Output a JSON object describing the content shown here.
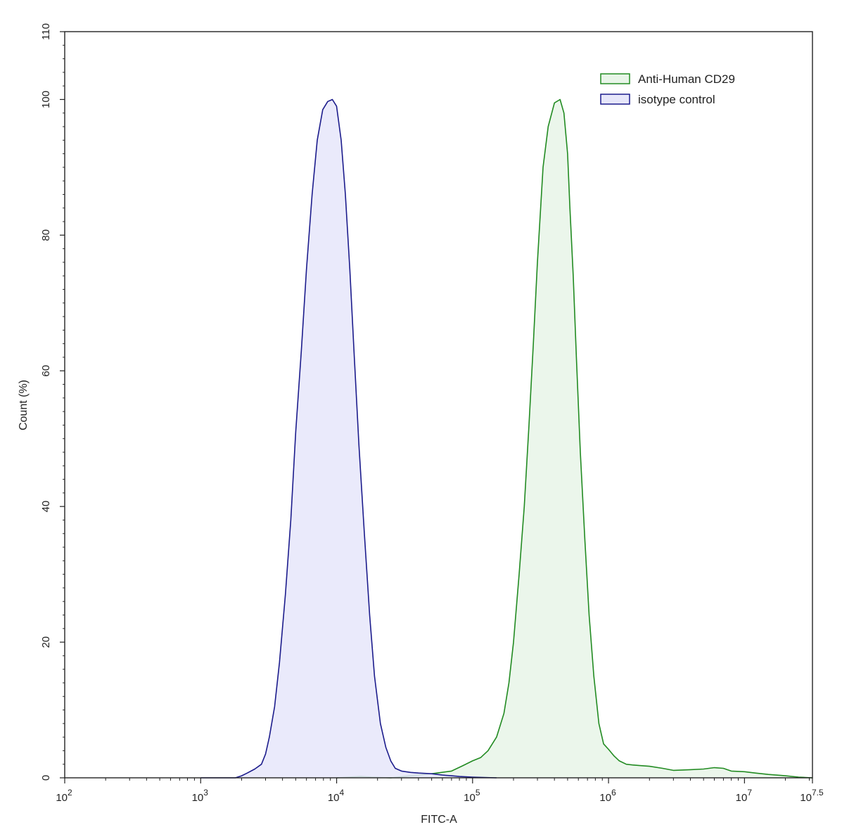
{
  "chart_data": {
    "type": "area",
    "title": "",
    "xlabel": "FITC-A",
    "ylabel": "Count (%)",
    "xscale": "log10",
    "xlim": [
      100,
      31622776.6
    ],
    "ylim": [
      0,
      110
    ],
    "grid": false,
    "legend_position": "top-right",
    "x_ticks": [
      {
        "base": "10",
        "exp": "2"
      },
      {
        "base": "10",
        "exp": "3"
      },
      {
        "base": "10",
        "exp": "4"
      },
      {
        "base": "10",
        "exp": "5"
      },
      {
        "base": "10",
        "exp": "6"
      },
      {
        "base": "10",
        "exp": "7"
      },
      {
        "base": "10",
        "exp": "7.5"
      }
    ],
    "y_ticks": [
      "0",
      "20",
      "40",
      "60",
      "80",
      "100",
      "110"
    ],
    "series": [
      {
        "name": "Anti-Human CD29",
        "line_color": "#228B22",
        "fill_color": "#e8f5e8",
        "x": [
          10000,
          15000,
          18000,
          25000,
          35000,
          50000,
          70000,
          85000,
          100000,
          115000,
          130000,
          150000,
          170000,
          185000,
          200000,
          220000,
          240000,
          260000,
          280000,
          300000,
          330000,
          360000,
          400000,
          440000,
          470000,
          500000,
          520000,
          550000,
          580000,
          620000,
          670000,
          720000,
          780000,
          850000,
          920000,
          1000000,
          1100000,
          1200000,
          1350000,
          1500000,
          1700000,
          2000000,
          2500000,
          3000000,
          4000000,
          5000000,
          6000000,
          7000000,
          8000000,
          10000000,
          12000000,
          15000000,
          20000000,
          25000000,
          31622776
        ],
        "y": [
          0,
          0.2,
          0.1,
          0,
          0.3,
          0.6,
          1.0,
          1.8,
          2.5,
          3.0,
          4.0,
          6.0,
          9.5,
          14,
          20,
          30,
          40,
          52,
          64,
          76,
          90,
          96,
          99.5,
          100,
          98,
          92,
          84,
          74,
          62,
          48,
          35,
          24,
          15,
          8,
          5,
          4.2,
          3.2,
          2.5,
          2.0,
          1.9,
          1.8,
          1.7,
          1.4,
          1.1,
          1.2,
          1.3,
          1.5,
          1.4,
          1.0,
          0.9,
          0.7,
          0.5,
          0.3,
          0.1,
          0
        ]
      },
      {
        "name": "isotype control",
        "line_color": "#1c1c8c",
        "fill_color": "#e6e6fa",
        "x": [
          1000,
          1800,
          2000,
          2200,
          2500,
          2800,
          3000,
          3200,
          3500,
          3800,
          4200,
          4600,
          5000,
          5500,
          6000,
          6600,
          7200,
          7900,
          8600,
          9300,
          10000,
          10800,
          11600,
          12500,
          13500,
          14600,
          16000,
          17500,
          19000,
          21000,
          23000,
          25000,
          27000,
          30000,
          35000,
          40000,
          50000,
          60000,
          70000,
          80000,
          100000,
          150000
        ],
        "y": [
          0,
          0,
          0.3,
          0.7,
          1.3,
          2.0,
          3.5,
          6.0,
          10.5,
          17,
          27,
          38,
          51,
          63,
          75,
          86,
          94,
          98.5,
          99.7,
          100,
          99,
          94,
          86,
          75,
          62,
          49,
          36,
          24,
          15,
          8,
          4.5,
          2.5,
          1.4,
          1.0,
          0.8,
          0.7,
          0.6,
          0.4,
          0.3,
          0.2,
          0.1,
          0
        ]
      }
    ]
  }
}
